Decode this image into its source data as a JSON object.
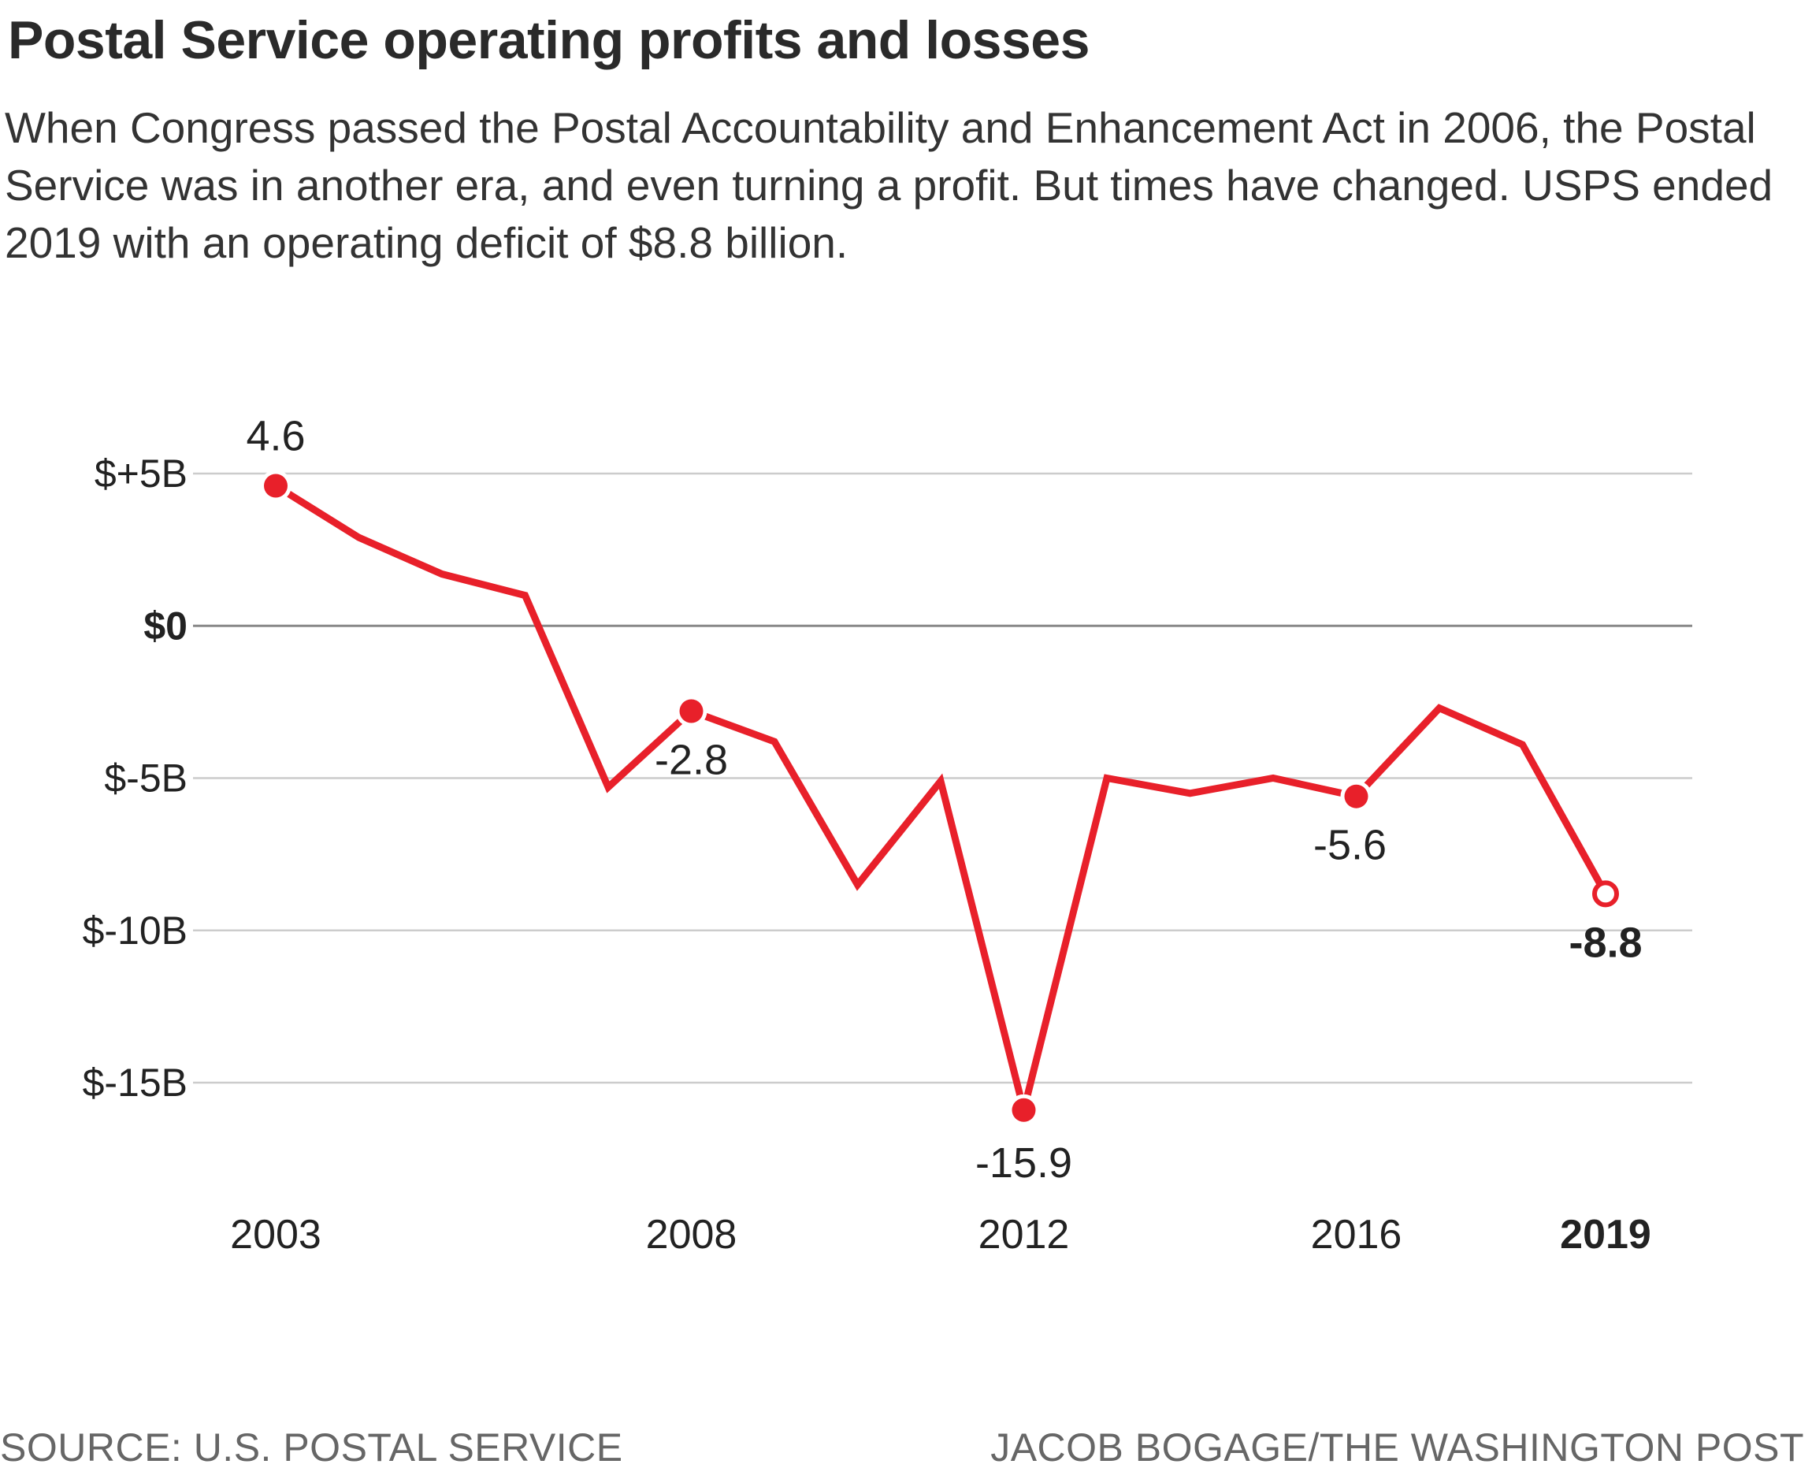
{
  "title": "Postal Service operating profits and losses",
  "subtitle": "When Congress passed the Postal Accountability and Enhancement Act in 2006, the Postal Service was in another era, and even turning a profit. But times have changed. USPS ended 2019 with an operating deficit of $8.8 billion.",
  "footer": {
    "source": "SOURCE: U.S. POSTAL SERVICE",
    "credit": "JACOB BOGAGE/THE WASHINGTON POST"
  },
  "colors": {
    "line": "#e8202a",
    "grid": "#cccccc",
    "zero_line": "#888888",
    "text": "#222222"
  },
  "chart_data": {
    "type": "line",
    "title": "Postal Service operating profits and losses",
    "xlabel": "",
    "ylabel": "",
    "x": [
      2003,
      2004,
      2005,
      2006,
      2007,
      2008,
      2009,
      2010,
      2011,
      2012,
      2013,
      2014,
      2015,
      2016,
      2017,
      2018,
      2019
    ],
    "series": [
      {
        "name": "Operating profit/loss ($B)",
        "values": [
          4.6,
          2.9,
          1.7,
          1.0,
          -5.3,
          -2.8,
          -3.8,
          -8.5,
          -5.1,
          -15.9,
          -5.0,
          -5.5,
          -5.0,
          -5.6,
          -2.7,
          -3.9,
          -8.8
        ]
      }
    ],
    "ylim": [
      -15,
      5
    ],
    "y_ticks": [
      {
        "value": 5,
        "label": "$+5B"
      },
      {
        "value": 0,
        "label": "$0"
      },
      {
        "value": -5,
        "label": "$-5B"
      },
      {
        "value": -10,
        "label": "$-10B"
      },
      {
        "value": -15,
        "label": "$-15B"
      }
    ],
    "x_ticks": [
      {
        "value": 2003,
        "label": "2003"
      },
      {
        "value": 2008,
        "label": "2008"
      },
      {
        "value": 2012,
        "label": "2012"
      },
      {
        "value": 2016,
        "label": "2016"
      },
      {
        "value": 2019,
        "label": "2019"
      }
    ],
    "annotations": [
      {
        "x": 2003,
        "y": 4.6,
        "label": "4.6",
        "position": "above"
      },
      {
        "x": 2008,
        "y": -2.8,
        "label": "-2.8",
        "position": "below"
      },
      {
        "x": 2012,
        "y": -15.9,
        "label": "-15.9",
        "position": "below"
      },
      {
        "x": 2016,
        "y": -5.6,
        "label": "-5.6",
        "position": "below"
      },
      {
        "x": 2019,
        "y": -8.8,
        "label": "-8.8",
        "position": "below",
        "emphasis": true,
        "hollow": true
      }
    ],
    "grid": true,
    "legend": "none"
  }
}
